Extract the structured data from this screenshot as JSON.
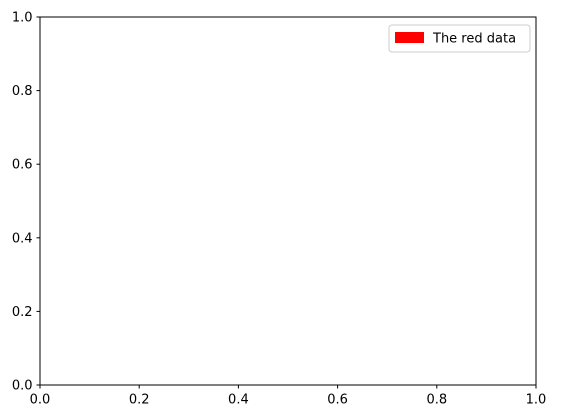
{
  "chart_data": {
    "type": "line",
    "title": "",
    "xlabel": "",
    "ylabel": "",
    "xlim": [
      0,
      1
    ],
    "ylim": [
      0,
      1
    ],
    "x_ticks": [
      "0.0",
      "0.2",
      "0.4",
      "0.6",
      "0.8",
      "1.0"
    ],
    "y_ticks": [
      "0.0",
      "0.2",
      "0.4",
      "0.6",
      "0.8",
      "1.0"
    ],
    "grid": false,
    "legend": {
      "placement": "top-right",
      "entries": [
        {
          "label": "The red data",
          "color": "#ff0000",
          "marker": "patch"
        }
      ]
    },
    "series": []
  }
}
